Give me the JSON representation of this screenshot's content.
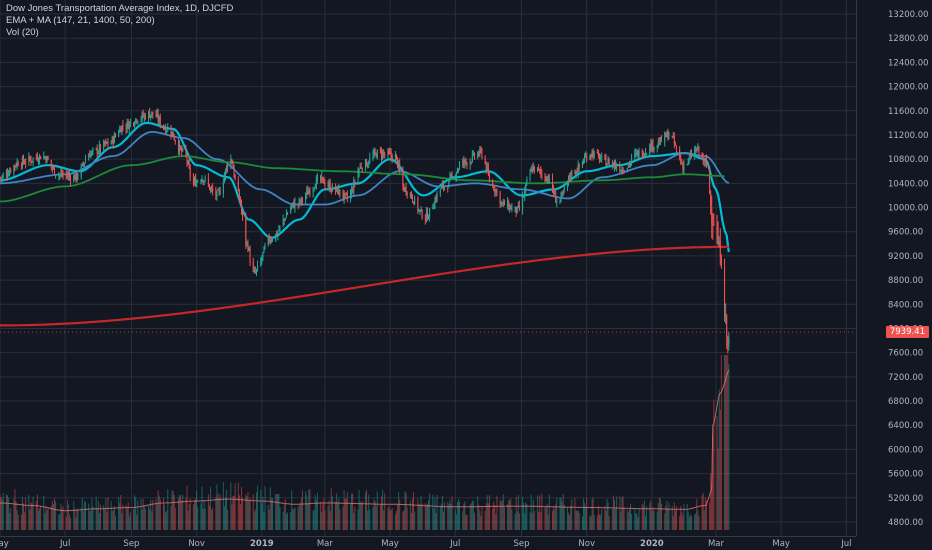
{
  "legend": {
    "title": "Dow Jones Transportation Average Index, 1D, DJCFD",
    "indicator": "EMA + MA (147, 21, 1400, 50, 200)",
    "volume": "Vol (20)"
  },
  "last_price": {
    "label": "7939.41",
    "value": 7939.41
  },
  "colors": {
    "background": "#131722",
    "grid": "#2a2e39",
    "up": "#26a69a",
    "down": "#ef5350",
    "ema_fast": "#00bcd4",
    "ma_blue": "#3d85c6",
    "ma_green": "#1b8a3a",
    "ma_long": "#c62828",
    "price_tag": "#ef5350"
  },
  "chart_data": {
    "type": "candlestick",
    "y_axis": {
      "ticks": [
        13200,
        12800,
        12400,
        12000,
        11600,
        11200,
        10800,
        10400,
        10000,
        9600,
        9200,
        8800,
        8400,
        8000,
        7600,
        7200,
        6800,
        6400,
        6000,
        5600,
        5200,
        4800
      ],
      "tick_labels": [
        "13200.00",
        "12800.00",
        "12400.00",
        "12000.00",
        "11600.00",
        "11200.00",
        "10800.00",
        "10400.00",
        "10000.00",
        "9600.00",
        "9200.00",
        "8800.00",
        "8400.00",
        "8000.00",
        "7600.00",
        "7200.00",
        "6800.00",
        "6400.00",
        "6000.00",
        "5600.00",
        "5200.00",
        "4800.00"
      ],
      "range": [
        4700,
        13300
      ]
    },
    "x_axis": {
      "labels": [
        "May",
        "Jul",
        "Sep",
        "Nov",
        "2019",
        "Mar",
        "May",
        "Jul",
        "Sep",
        "Nov",
        "2020",
        "Mar",
        "May",
        "Jul"
      ],
      "range": [
        "2018-05-01",
        "2020-07-10"
      ]
    },
    "price_keypoints": [
      [
        "2018-05-01",
        10500
      ],
      [
        "2018-05-20",
        10750
      ],
      [
        "2018-06-10",
        10850
      ],
      [
        "2018-06-25",
        10550
      ],
      [
        "2018-07-10",
        10500
      ],
      [
        "2018-07-25",
        10900
      ],
      [
        "2018-08-10",
        11050
      ],
      [
        "2018-08-25",
        11350
      ],
      [
        "2018-09-10",
        11500
      ],
      [
        "2018-09-20",
        11550
      ],
      [
        "2018-10-05",
        11300
      ],
      [
        "2018-10-20",
        10900
      ],
      [
        "2018-10-29",
        10400
      ],
      [
        "2018-11-05",
        10500
      ],
      [
        "2018-11-20",
        10200
      ],
      [
        "2018-12-03",
        10800
      ],
      [
        "2018-12-10",
        10200
      ],
      [
        "2018-12-18",
        9400
      ],
      [
        "2018-12-24",
        8900
      ],
      [
        "2019-01-10",
        9500
      ],
      [
        "2019-02-01",
        10050
      ],
      [
        "2019-02-25",
        10450
      ],
      [
        "2019-03-10",
        10300
      ],
      [
        "2019-03-22",
        10150
      ],
      [
        "2019-04-05",
        10700
      ],
      [
        "2019-04-20",
        10900
      ],
      [
        "2019-05-05",
        10850
      ],
      [
        "2019-05-15",
        10300
      ],
      [
        "2019-06-03",
        9850
      ],
      [
        "2019-06-20",
        10350
      ],
      [
        "2019-07-10",
        10750
      ],
      [
        "2019-07-25",
        10900
      ],
      [
        "2019-08-05",
        10350
      ],
      [
        "2019-08-15",
        10050
      ],
      [
        "2019-08-28",
        9950
      ],
      [
        "2019-09-12",
        10650
      ],
      [
        "2019-09-25",
        10500
      ],
      [
        "2019-10-05",
        10100
      ],
      [
        "2019-10-20",
        10600
      ],
      [
        "2019-11-05",
        10900
      ],
      [
        "2019-11-20",
        10750
      ],
      [
        "2019-12-05",
        10650
      ],
      [
        "2019-12-20",
        10900
      ],
      [
        "2020-01-05",
        11050
      ],
      [
        "2020-01-17",
        11200
      ],
      [
        "2020-01-31",
        10700
      ],
      [
        "2020-02-12",
        10950
      ],
      [
        "2020-02-21",
        10700
      ],
      [
        "2020-02-27",
        9800
      ],
      [
        "2020-03-05",
        9300
      ],
      [
        "2020-03-09",
        8300
      ],
      [
        "2020-03-12",
        7700
      ],
      [
        "2020-03-14",
        7939
      ]
    ],
    "moving_averages": [
      {
        "key": "ema_fast",
        "keypoints": [
          [
            "2018-05-01",
            10450
          ],
          [
            "2018-06-15",
            10700
          ],
          [
            "2018-07-15",
            10600
          ],
          [
            "2018-08-15",
            11000
          ],
          [
            "2018-09-15",
            11400
          ],
          [
            "2018-10-10",
            11300
          ],
          [
            "2018-11-01",
            10700
          ],
          [
            "2018-12-01",
            10500
          ],
          [
            "2018-12-20",
            9800
          ],
          [
            "2019-01-10",
            9500
          ],
          [
            "2019-02-05",
            9800
          ],
          [
            "2019-03-01",
            10300
          ],
          [
            "2019-04-01",
            10400
          ],
          [
            "2019-05-01",
            10800
          ],
          [
            "2019-06-01",
            10200
          ],
          [
            "2019-07-01",
            10500
          ],
          [
            "2019-08-01",
            10600
          ],
          [
            "2019-09-01",
            10200
          ],
          [
            "2019-10-01",
            10300
          ],
          [
            "2019-11-01",
            10600
          ],
          [
            "2019-12-01",
            10700
          ],
          [
            "2020-01-01",
            10850
          ],
          [
            "2020-02-01",
            10900
          ],
          [
            "2020-02-20",
            10800
          ],
          [
            "2020-03-01",
            10300
          ],
          [
            "2020-03-10",
            9600
          ],
          [
            "2020-03-14",
            9200
          ]
        ]
      },
      {
        "key": "ma_blue",
        "keypoints": [
          [
            "2018-05-01",
            10400
          ],
          [
            "2018-07-01",
            10550
          ],
          [
            "2018-08-15",
            10850
          ],
          [
            "2018-09-20",
            11250
          ],
          [
            "2018-10-20",
            11150
          ],
          [
            "2018-11-20",
            10800
          ],
          [
            "2018-12-31",
            10300
          ],
          [
            "2019-02-01",
            10050
          ],
          [
            "2019-03-01",
            10050
          ],
          [
            "2019-04-01",
            10200
          ],
          [
            "2019-05-10",
            10600
          ],
          [
            "2019-06-15",
            10350
          ],
          [
            "2019-07-20",
            10400
          ],
          [
            "2019-09-01",
            10300
          ],
          [
            "2019-10-15",
            10150
          ],
          [
            "2019-11-15",
            10500
          ],
          [
            "2020-01-01",
            10700
          ],
          [
            "2020-02-01",
            10900
          ],
          [
            "2020-02-20",
            10850
          ],
          [
            "2020-03-14",
            10400
          ]
        ]
      },
      {
        "key": "ma_green",
        "keypoints": [
          [
            "2018-05-01",
            10100
          ],
          [
            "2018-07-01",
            10350
          ],
          [
            "2018-09-01",
            10700
          ],
          [
            "2018-10-20",
            10850
          ],
          [
            "2018-12-01",
            10750
          ],
          [
            "2019-01-15",
            10650
          ],
          [
            "2019-03-15",
            10600
          ],
          [
            "2019-05-15",
            10550
          ],
          [
            "2019-07-15",
            10450
          ],
          [
            "2019-09-15",
            10400
          ],
          [
            "2019-11-15",
            10450
          ],
          [
            "2020-01-01",
            10500
          ],
          [
            "2020-02-01",
            10550
          ],
          [
            "2020-03-10",
            10520
          ]
        ]
      },
      {
        "key": "ma_long",
        "keypoints": [
          [
            "2018-05-01",
            8050
          ],
          [
            "2020-03-14",
            9350
          ]
        ]
      }
    ],
    "volume": {
      "axis_note": "volume pane overlays lower area of price axis (no separate scale)",
      "keypoints": [
        [
          "2018-05-01",
          0.42
        ],
        [
          "2018-06-01",
          0.38
        ],
        [
          "2018-07-01",
          0.3
        ],
        [
          "2018-08-01",
          0.33
        ],
        [
          "2018-09-01",
          0.35
        ],
        [
          "2018-10-01",
          0.42
        ],
        [
          "2018-11-01",
          0.45
        ],
        [
          "2018-12-01",
          0.48
        ],
        [
          "2019-01-01",
          0.45
        ],
        [
          "2019-02-01",
          0.4
        ],
        [
          "2019-03-01",
          0.42
        ],
        [
          "2019-05-01",
          0.4
        ],
        [
          "2019-07-01",
          0.36
        ],
        [
          "2019-09-01",
          0.37
        ],
        [
          "2019-11-01",
          0.35
        ],
        [
          "2020-01-01",
          0.33
        ],
        [
          "2020-02-01",
          0.32
        ],
        [
          "2020-02-20",
          0.38
        ],
        [
          "2020-02-27",
          0.65
        ],
        [
          "2020-03-05",
          0.85
        ],
        [
          "2020-03-14",
          1.0
        ]
      ]
    }
  }
}
